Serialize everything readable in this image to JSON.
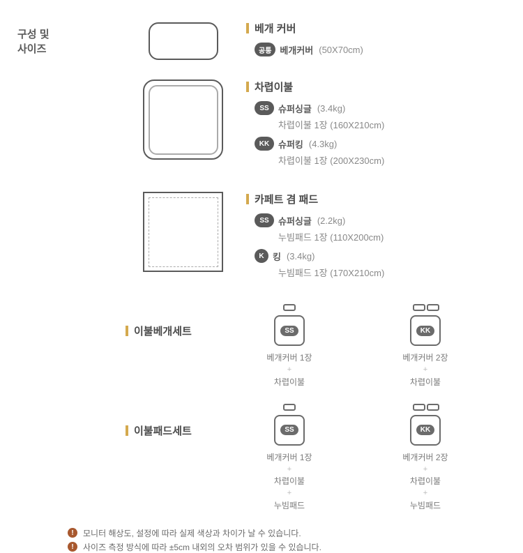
{
  "header": {
    "title": "구성 및\n사이즈"
  },
  "pillow": {
    "title": "베개 커버",
    "badge": "공통",
    "name": "베개커버",
    "spec": "(50X70cm)"
  },
  "comforter": {
    "title": "차렵이불",
    "items": [
      {
        "badge": "SS",
        "name": "슈퍼싱글",
        "weight": "(3.4kg)",
        "detail": "차렵이불 1장  (160X210cm)"
      },
      {
        "badge": "KK",
        "name": "슈퍼킹",
        "weight": "(4.3kg)",
        "detail": "차렵이불 1장  (200X230cm)"
      }
    ]
  },
  "pad": {
    "title": "카페트 겸 패드",
    "items": [
      {
        "badge": "SS",
        "name": "슈퍼싱글",
        "weight": "(2.2kg)",
        "detail": "누빔패드 1장  (110X200cm)"
      },
      {
        "badge": "K",
        "name": "킹",
        "weight": "(3.4kg)",
        "detail": "누빔패드 1장  (170X210cm)"
      }
    ]
  },
  "set1": {
    "title": "이불베개세트",
    "items": [
      {
        "badge": "SS",
        "pillows": 1,
        "lines": [
          "베개커버 1장",
          "차렵이불"
        ]
      },
      {
        "badge": "KK",
        "pillows": 2,
        "lines": [
          "베개커버 2장",
          "차렵이불"
        ]
      }
    ]
  },
  "set2": {
    "title": "이불패드세트",
    "items": [
      {
        "badge": "SS",
        "pillows": 1,
        "lines": [
          "베개커버 1장",
          "차렵이불",
          "누빔패드"
        ]
      },
      {
        "badge": "KK",
        "pillows": 2,
        "lines": [
          "베개커버 2장",
          "차렵이불",
          "누빔패드"
        ]
      }
    ]
  },
  "notes": [
    "모니터 해상도, 설정에 따라 실제 색상과 차이가 날 수 있습니다.",
    "사이즈 측정 방식에 따라 ±5cm 내외의 오차 범위가 있을 수 있습니다."
  ]
}
